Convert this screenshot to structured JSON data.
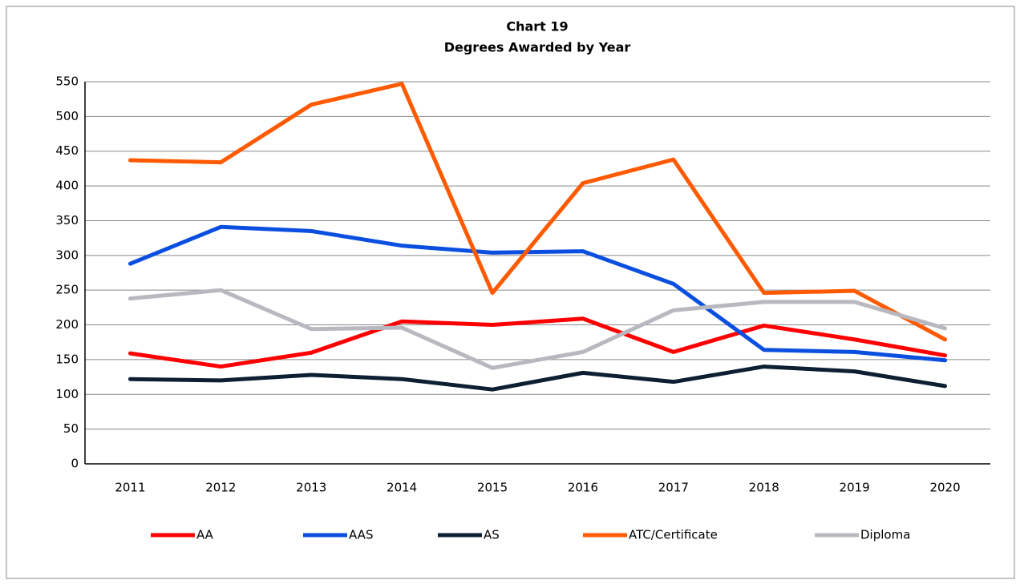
{
  "chart_data": {
    "type": "line",
    "title": "Chart 19",
    "subtitle": "Degrees Awarded by Year",
    "categories": [
      "2011",
      "2012",
      "2013",
      "2014",
      "2015",
      "2016",
      "2017",
      "2018",
      "2019",
      "2020"
    ],
    "series": [
      {
        "name": "AA",
        "color": "#ff0000",
        "values": [
          159,
          140,
          160,
          205,
          200,
          209,
          161,
          199,
          179,
          156
        ]
      },
      {
        "name": "AAS",
        "color": "#0a4fe0",
        "values": [
          288,
          341,
          335,
          314,
          304,
          306,
          259,
          164,
          161,
          149
        ]
      },
      {
        "name": "AS",
        "color": "#0d1f33",
        "values": [
          122,
          120,
          128,
          122,
          107,
          131,
          118,
          140,
          133,
          112
        ]
      },
      {
        "name": "ATC/Certificate",
        "color": "#ff5a00",
        "values": [
          437,
          434,
          517,
          547,
          246,
          404,
          438,
          246,
          249,
          179
        ]
      },
      {
        "name": "Diploma",
        "color": "#b8b8c0",
        "values": [
          238,
          250,
          194,
          196,
          138,
          161,
          221,
          233,
          233,
          195
        ]
      }
    ],
    "ylim": [
      0,
      550
    ],
    "yticks": [
      0,
      50,
      100,
      150,
      200,
      250,
      300,
      350,
      400,
      450,
      500,
      550
    ],
    "grid": true,
    "legend": "bottom"
  }
}
